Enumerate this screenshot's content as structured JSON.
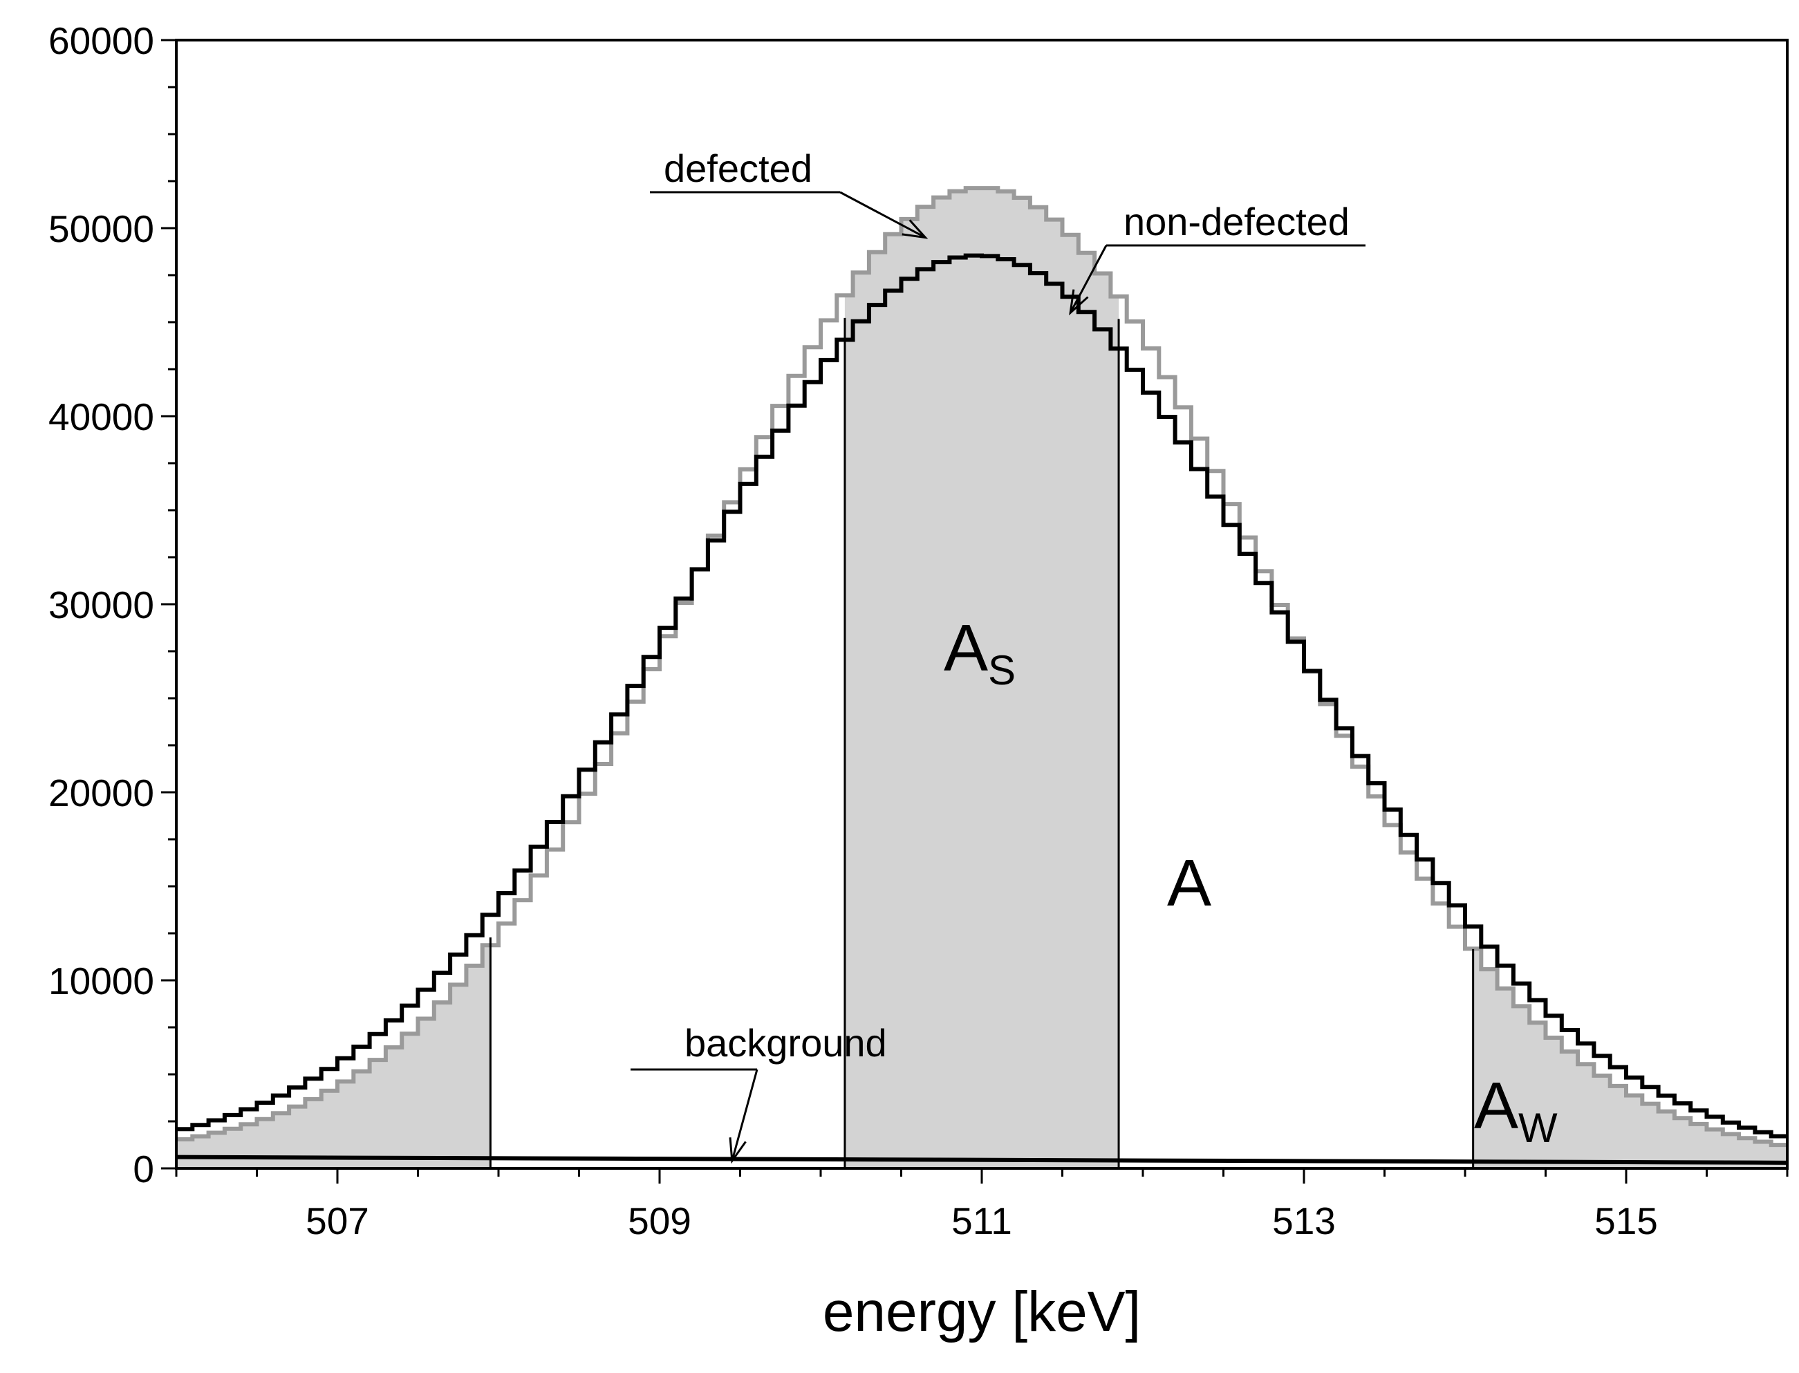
{
  "chart_data": {
    "type": "line",
    "title": "",
    "xlabel": "energy [keV]",
    "ylabel": "",
    "xlim": [
      506,
      516
    ],
    "ylim": [
      0,
      60000
    ],
    "x_ticks": [
      507,
      509,
      511,
      513,
      515
    ],
    "y_ticks": [
      0,
      10000,
      20000,
      30000,
      40000,
      50000,
      60000
    ],
    "grid": false,
    "legend": "none",
    "series": [
      {
        "name": "defected",
        "style": "step",
        "color": "#9a9a9a",
        "peak_center": 511.0,
        "peak_height": 52300,
        "sigma": 1.75,
        "background": [
          600,
          300
        ]
      },
      {
        "name": "non-defected",
        "style": "step",
        "color": "#000000",
        "peak_center": 510.98,
        "peak_height": 48700,
        "sigma": 1.87,
        "background": [
          600,
          300
        ]
      },
      {
        "name": "background",
        "style": "line",
        "color": "#000000",
        "points": [
          [
            506,
            600
          ],
          [
            516,
            300
          ]
        ]
      }
    ],
    "regions": [
      {
        "label": "A_S",
        "name": "S",
        "x_range": [
          510.15,
          511.85
        ],
        "fill": "#d3d3d3"
      },
      {
        "label": "A_W",
        "name": "W-left",
        "x_range": [
          506,
          507.95
        ],
        "fill": "#d3d3d3"
      },
      {
        "label": "A_W",
        "name": "W-right",
        "x_range": [
          514.05,
          516
        ],
        "fill": "#d3d3d3"
      },
      {
        "label": "A",
        "name": "total",
        "x_range": [
          506,
          516
        ]
      }
    ],
    "annotations": [
      {
        "text": "defected",
        "arrow_to": [
          510.65,
          49500
        ]
      },
      {
        "text": "non-defected",
        "arrow_to": [
          511.55,
          45500
        ]
      },
      {
        "text": "background",
        "arrow_to": [
          509.45,
          400
        ]
      }
    ],
    "area_labels": {
      "as_main": "A",
      "as_sub": "S",
      "a": "A",
      "aw_main": "A",
      "aw_sub": "W"
    }
  }
}
